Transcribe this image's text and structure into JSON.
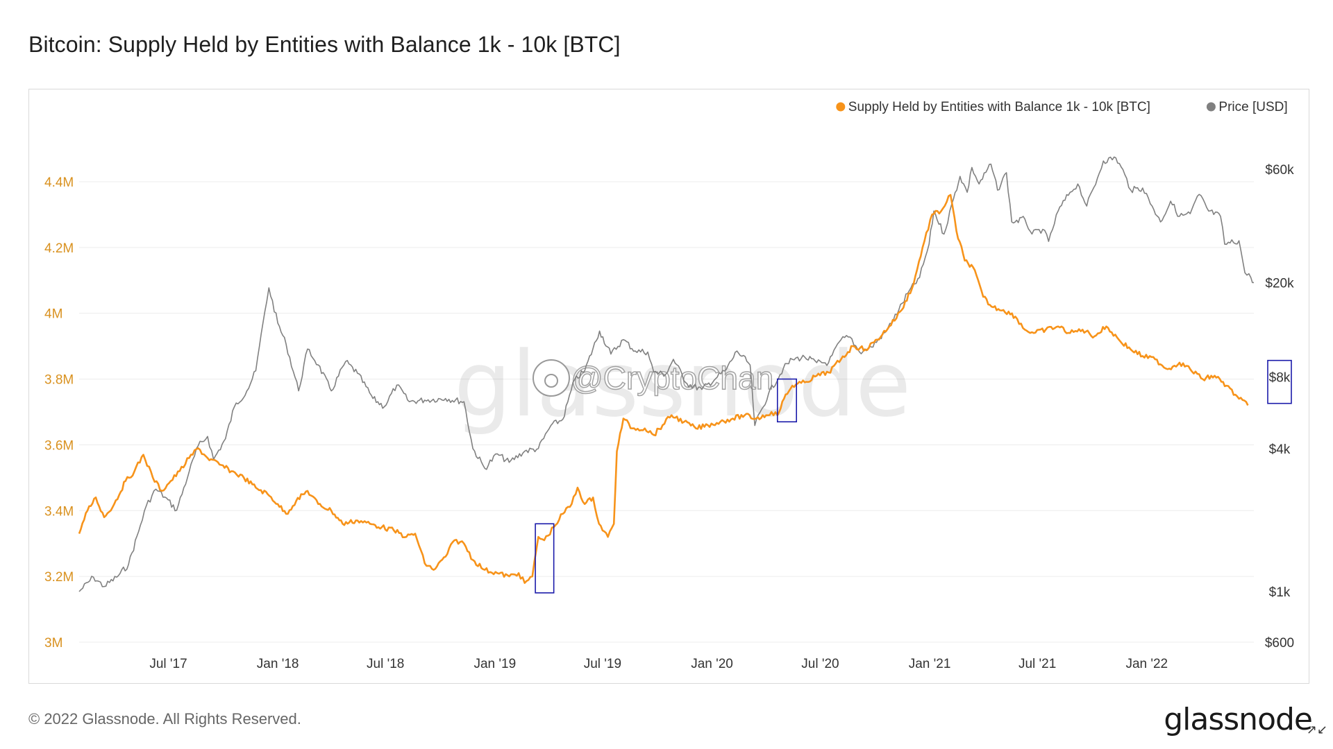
{
  "title": "Bitcoin: Supply Held by Entities with Balance 1k - 10k [BTC]",
  "footer": {
    "copyright": "© 2022 Glassnode. All Rights Reserved.",
    "logo": "glassnode",
    "expand_icon": "expand-icon"
  },
  "watermark": {
    "brand": "glassnode",
    "handle": "@CryptoChan"
  },
  "colors": {
    "supply": "#f7931a",
    "price": "#808080",
    "highlight_box": "#1a1aaa",
    "grid": "#ececec"
  },
  "legend": [
    {
      "label": "Supply Held by Entities with Balance 1k - 10k [BTC]",
      "color": "#f7931a"
    },
    {
      "label": "Price [USD]",
      "color": "#808080"
    }
  ],
  "chart_data": {
    "type": "line",
    "title": "Bitcoin: Supply Held by Entities with Balance 1k - 10k [BTC]",
    "x_range": [
      "2017-02-01",
      "2022-06-30"
    ],
    "x_ticks": [
      {
        "date": "2017-07-01",
        "label": "Jul '17"
      },
      {
        "date": "2018-01-01",
        "label": "Jan '18"
      },
      {
        "date": "2018-07-01",
        "label": "Jul '18"
      },
      {
        "date": "2019-01-01",
        "label": "Jan '19"
      },
      {
        "date": "2019-07-01",
        "label": "Jul '19"
      },
      {
        "date": "2020-01-01",
        "label": "Jan '20"
      },
      {
        "date": "2020-07-01",
        "label": "Jul '20"
      },
      {
        "date": "2021-01-01",
        "label": "Jan '21"
      },
      {
        "date": "2021-07-01",
        "label": "Jul '21"
      },
      {
        "date": "2022-01-01",
        "label": "Jan '22"
      }
    ],
    "y_left": {
      "range": [
        3000000,
        4400000
      ],
      "ticks": [
        {
          "value": 3000000,
          "label": "3M"
        },
        {
          "value": 3200000,
          "label": "3.2M"
        },
        {
          "value": 3400000,
          "label": "3.4M"
        },
        {
          "value": 3600000,
          "label": "3.6M"
        },
        {
          "value": 3800000,
          "label": "3.8M"
        },
        {
          "value": 4000000,
          "label": "4M"
        },
        {
          "value": 4200000,
          "label": "4.2M"
        },
        {
          "value": 4400000,
          "label": "4.4M"
        }
      ]
    },
    "y_right": {
      "scale": "log",
      "ticks": [
        {
          "value": 600,
          "label": "$600"
        },
        {
          "value": 1000,
          "label": "$1k"
        },
        {
          "value": 4000,
          "label": "$4k"
        },
        {
          "value": 8000,
          "label": "$8k"
        },
        {
          "value": 20000,
          "label": "$20k"
        },
        {
          "value": 60000,
          "label": "$60k"
        }
      ]
    },
    "grid": true,
    "legend_position": "top-right",
    "series": [
      {
        "name": "Supply Held by Entities with Balance 1k - 10k [BTC]",
        "axis": "left",
        "points": [
          [
            "2017-02-01",
            3330000
          ],
          [
            "2017-02-15",
            3400000
          ],
          [
            "2017-03-01",
            3440000
          ],
          [
            "2017-03-15",
            3380000
          ],
          [
            "2017-04-01",
            3420000
          ],
          [
            "2017-04-20",
            3490000
          ],
          [
            "2017-05-05",
            3520000
          ],
          [
            "2017-05-20",
            3570000
          ],
          [
            "2017-06-05",
            3500000
          ],
          [
            "2017-06-20",
            3460000
          ],
          [
            "2017-07-05",
            3490000
          ],
          [
            "2017-07-20",
            3520000
          ],
          [
            "2017-08-05",
            3560000
          ],
          [
            "2017-08-20",
            3590000
          ],
          [
            "2017-09-05",
            3560000
          ],
          [
            "2017-09-25",
            3540000
          ],
          [
            "2017-10-15",
            3520000
          ],
          [
            "2017-11-05",
            3500000
          ],
          [
            "2017-11-25",
            3470000
          ],
          [
            "2017-12-15",
            3450000
          ],
          [
            "2018-01-01",
            3420000
          ],
          [
            "2018-01-15",
            3390000
          ],
          [
            "2018-02-01",
            3430000
          ],
          [
            "2018-02-20",
            3460000
          ],
          [
            "2018-03-10",
            3420000
          ],
          [
            "2018-04-01",
            3400000
          ],
          [
            "2018-04-20",
            3360000
          ],
          [
            "2018-05-15",
            3370000
          ],
          [
            "2018-06-05",
            3360000
          ],
          [
            "2018-06-25",
            3350000
          ],
          [
            "2018-07-15",
            3340000
          ],
          [
            "2018-08-05",
            3320000
          ],
          [
            "2018-08-20",
            3330000
          ],
          [
            "2018-09-05",
            3240000
          ],
          [
            "2018-09-20",
            3220000
          ],
          [
            "2018-10-10",
            3260000
          ],
          [
            "2018-10-25",
            3310000
          ],
          [
            "2018-11-10",
            3300000
          ],
          [
            "2018-11-25",
            3250000
          ],
          [
            "2018-12-15",
            3220000
          ],
          [
            "2019-01-05",
            3210000
          ],
          [
            "2019-01-25",
            3200000
          ],
          [
            "2019-02-10",
            3210000
          ],
          [
            "2019-02-20",
            3180000
          ],
          [
            "2019-03-05",
            3200000
          ],
          [
            "2019-03-15",
            3320000
          ],
          [
            "2019-03-25",
            3310000
          ],
          [
            "2019-04-10",
            3350000
          ],
          [
            "2019-04-25",
            3390000
          ],
          [
            "2019-05-10",
            3420000
          ],
          [
            "2019-05-20",
            3470000
          ],
          [
            "2019-06-01",
            3420000
          ],
          [
            "2019-06-15",
            3440000
          ],
          [
            "2019-06-25",
            3360000
          ],
          [
            "2019-07-10",
            3320000
          ],
          [
            "2019-07-20",
            3360000
          ],
          [
            "2019-07-25",
            3580000
          ],
          [
            "2019-08-05",
            3680000
          ],
          [
            "2019-08-20",
            3650000
          ],
          [
            "2019-09-10",
            3650000
          ],
          [
            "2019-09-25",
            3630000
          ],
          [
            "2019-10-10",
            3660000
          ],
          [
            "2019-10-25",
            3690000
          ],
          [
            "2019-11-15",
            3670000
          ],
          [
            "2019-12-05",
            3650000
          ],
          [
            "2019-12-25",
            3660000
          ],
          [
            "2020-01-15",
            3670000
          ],
          [
            "2020-02-05",
            3680000
          ],
          [
            "2020-02-25",
            3690000
          ],
          [
            "2020-03-15",
            3680000
          ],
          [
            "2020-04-01",
            3690000
          ],
          [
            "2020-04-10",
            3700000
          ],
          [
            "2020-04-20",
            3690000
          ],
          [
            "2020-05-01",
            3740000
          ],
          [
            "2020-05-15",
            3780000
          ],
          [
            "2020-06-05",
            3790000
          ],
          [
            "2020-06-25",
            3810000
          ],
          [
            "2020-07-15",
            3820000
          ],
          [
            "2020-08-05",
            3860000
          ],
          [
            "2020-08-25",
            3900000
          ],
          [
            "2020-09-15",
            3890000
          ],
          [
            "2020-10-05",
            3920000
          ],
          [
            "2020-10-25",
            3960000
          ],
          [
            "2020-11-15",
            4010000
          ],
          [
            "2020-12-05",
            4090000
          ],
          [
            "2020-12-20",
            4200000
          ],
          [
            "2021-01-05",
            4300000
          ],
          [
            "2021-01-20",
            4310000
          ],
          [
            "2021-02-05",
            4360000
          ],
          [
            "2021-02-15",
            4250000
          ],
          [
            "2021-03-01",
            4160000
          ],
          [
            "2021-03-15",
            4140000
          ],
          [
            "2021-04-01",
            4050000
          ],
          [
            "2021-04-15",
            4020000
          ],
          [
            "2021-05-05",
            4010000
          ],
          [
            "2021-05-25",
            3990000
          ],
          [
            "2021-06-10",
            3950000
          ],
          [
            "2021-06-25",
            3940000
          ],
          [
            "2021-07-15",
            3950000
          ],
          [
            "2021-08-05",
            3960000
          ],
          [
            "2021-08-25",
            3940000
          ],
          [
            "2021-09-15",
            3950000
          ],
          [
            "2021-10-05",
            3930000
          ],
          [
            "2021-10-25",
            3960000
          ],
          [
            "2021-11-15",
            3920000
          ],
          [
            "2021-12-05",
            3890000
          ],
          [
            "2021-12-25",
            3870000
          ],
          [
            "2022-01-15",
            3860000
          ],
          [
            "2022-02-05",
            3830000
          ],
          [
            "2022-02-25",
            3850000
          ],
          [
            "2022-03-15",
            3830000
          ],
          [
            "2022-04-05",
            3800000
          ],
          [
            "2022-04-25",
            3810000
          ],
          [
            "2022-05-15",
            3780000
          ],
          [
            "2022-06-05",
            3740000
          ],
          [
            "2022-06-20",
            3720000
          ]
        ]
      },
      {
        "name": "Price [USD]",
        "axis": "right",
        "points": [
          [
            "2017-02-01",
            1000
          ],
          [
            "2017-02-25",
            1150
          ],
          [
            "2017-03-15",
            1050
          ],
          [
            "2017-04-05",
            1150
          ],
          [
            "2017-04-25",
            1300
          ],
          [
            "2017-05-15",
            1900
          ],
          [
            "2017-05-25",
            2300
          ],
          [
            "2017-06-10",
            2700
          ],
          [
            "2017-06-25",
            2500
          ],
          [
            "2017-07-15",
            2200
          ],
          [
            "2017-08-05",
            3200
          ],
          [
            "2017-08-20",
            4100
          ],
          [
            "2017-09-05",
            4500
          ],
          [
            "2017-09-15",
            3600
          ],
          [
            "2017-10-05",
            4400
          ],
          [
            "2017-10-20",
            6000
          ],
          [
            "2017-11-10",
            7000
          ],
          [
            "2017-11-25",
            8500
          ],
          [
            "2017-12-10",
            15000
          ],
          [
            "2017-12-17",
            19000
          ],
          [
            "2018-01-01",
            13500
          ],
          [
            "2018-01-15",
            11000
          ],
          [
            "2018-02-05",
            7000
          ],
          [
            "2018-02-20",
            10500
          ],
          [
            "2018-03-10",
            9000
          ],
          [
            "2018-04-01",
            7000
          ],
          [
            "2018-04-25",
            9300
          ],
          [
            "2018-05-15",
            8300
          ],
          [
            "2018-06-10",
            6500
          ],
          [
            "2018-06-29",
            6000
          ],
          [
            "2018-07-20",
            7400
          ],
          [
            "2018-08-10",
            6300
          ],
          [
            "2018-09-05",
            6400
          ],
          [
            "2018-10-10",
            6500
          ],
          [
            "2018-11-10",
            6300
          ],
          [
            "2018-11-25",
            4000
          ],
          [
            "2018-12-15",
            3300
          ],
          [
            "2019-01-05",
            3800
          ],
          [
            "2019-01-25",
            3500
          ],
          [
            "2019-02-20",
            3900
          ],
          [
            "2019-03-15",
            4000
          ],
          [
            "2019-04-05",
            5000
          ],
          [
            "2019-04-25",
            5300
          ],
          [
            "2019-05-15",
            7800
          ],
          [
            "2019-06-01",
            8500
          ],
          [
            "2019-06-26",
            12500
          ],
          [
            "2019-07-15",
            10000
          ],
          [
            "2019-08-05",
            11500
          ],
          [
            "2019-08-25",
            10300
          ],
          [
            "2019-09-15",
            10200
          ],
          [
            "2019-09-25",
            8400
          ],
          [
            "2019-10-15",
            8200
          ],
          [
            "2019-10-28",
            9500
          ],
          [
            "2019-11-20",
            7500
          ],
          [
            "2019-12-15",
            7100
          ],
          [
            "2020-01-10",
            8000
          ],
          [
            "2020-01-25",
            8600
          ],
          [
            "2020-02-12",
            10300
          ],
          [
            "2020-03-05",
            9000
          ],
          [
            "2020-03-13",
            5000
          ],
          [
            "2020-04-05",
            6800
          ],
          [
            "2020-04-30",
            8700
          ],
          [
            "2020-05-15",
            9500
          ],
          [
            "2020-06-05",
            9700
          ],
          [
            "2020-06-25",
            9200
          ],
          [
            "2020-07-15",
            9200
          ],
          [
            "2020-08-05",
            11500
          ],
          [
            "2020-08-20",
            11800
          ],
          [
            "2020-09-05",
            10200
          ],
          [
            "2020-09-25",
            10700
          ],
          [
            "2020-10-20",
            12500
          ],
          [
            "2020-11-10",
            15300
          ],
          [
            "2020-11-25",
            18000
          ],
          [
            "2020-12-15",
            21000
          ],
          [
            "2020-12-31",
            29000
          ],
          [
            "2021-01-08",
            40000
          ],
          [
            "2021-01-25",
            32000
          ],
          [
            "2021-02-10",
            45000
          ],
          [
            "2021-02-21",
            56000
          ],
          [
            "2021-03-05",
            48000
          ],
          [
            "2021-03-13",
            61000
          ],
          [
            "2021-03-25",
            52000
          ],
          [
            "2021-04-14",
            63000
          ],
          [
            "2021-04-25",
            49000
          ],
          [
            "2021-05-10",
            58000
          ],
          [
            "2021-05-19",
            36000
          ],
          [
            "2021-06-10",
            37000
          ],
          [
            "2021-06-22",
            32000
          ],
          [
            "2021-07-10",
            33500
          ],
          [
            "2021-07-20",
            29800
          ],
          [
            "2021-08-05",
            40000
          ],
          [
            "2021-08-25",
            48000
          ],
          [
            "2021-09-07",
            52000
          ],
          [
            "2021-09-22",
            42000
          ],
          [
            "2021-10-10",
            55000
          ],
          [
            "2021-10-20",
            65000
          ],
          [
            "2021-11-10",
            67000
          ],
          [
            "2021-11-25",
            57000
          ],
          [
            "2021-12-05",
            49000
          ],
          [
            "2021-12-25",
            50000
          ],
          [
            "2022-01-10",
            42000
          ],
          [
            "2022-01-24",
            36000
          ],
          [
            "2022-02-10",
            44000
          ],
          [
            "2022-02-25",
            38000
          ],
          [
            "2022-03-15",
            39000
          ],
          [
            "2022-03-30",
            47000
          ],
          [
            "2022-04-15",
            40000
          ],
          [
            "2022-05-05",
            38000
          ],
          [
            "2022-05-12",
            29000
          ],
          [
            "2022-06-05",
            30000
          ],
          [
            "2022-06-15",
            22000
          ],
          [
            "2022-06-25",
            21000
          ],
          [
            "2022-06-30",
            20000
          ]
        ]
      }
    ],
    "annotations": [
      {
        "type": "box",
        "x_from": "2019-03-10",
        "x_to": "2019-04-10",
        "y_from": 3150000,
        "y_to": 3360000,
        "axis": "left",
        "color": "#1a1aaa"
      },
      {
        "type": "box",
        "x_from": "2020-04-20",
        "x_to": "2020-05-22",
        "y_from": 3670000,
        "y_to": 3800000,
        "axis": "left",
        "color": "#1a1aaa"
      },
      {
        "type": "box",
        "label_box_around": "$8k",
        "axis": "right",
        "color": "#1a1aaa"
      }
    ]
  }
}
